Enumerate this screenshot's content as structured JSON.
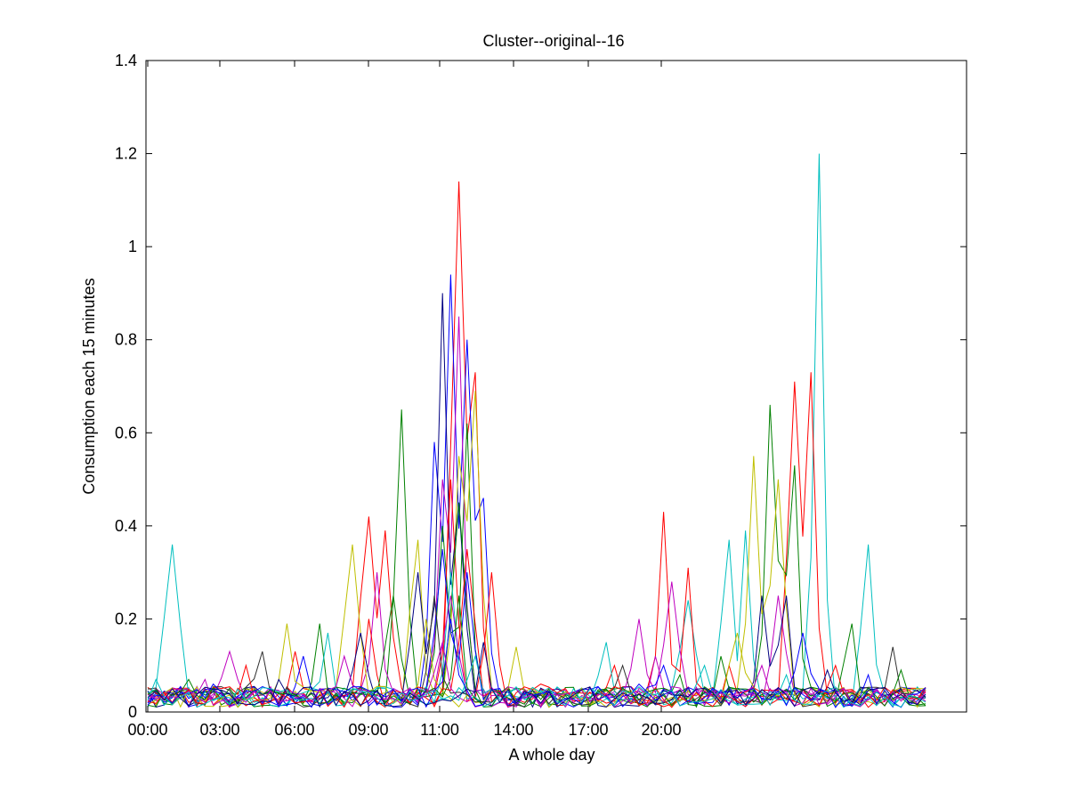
{
  "chart_data": {
    "type": "line",
    "title": "Cluster--original--16",
    "xlabel": "A whole day",
    "ylabel": "Consumption each 15 minutes",
    "x_ticks": [
      "00:00",
      "03:00",
      "06:00",
      "09:00",
      "11:00",
      "14:00",
      "17:00",
      "20:00"
    ],
    "y_ticks": [
      "0",
      "0.2",
      "0.4",
      "0.6",
      "0.8",
      "1",
      "1.2",
      "1.4"
    ],
    "ylim": [
      0,
      1.4
    ],
    "x_points_per_series": 96,
    "grid": false,
    "legend": "none",
    "colors": [
      "#0000ff",
      "#008000",
      "#ff0000",
      "#00bfbf",
      "#bf00bf",
      "#bfbf00",
      "#000080",
      "#303030"
    ],
    "series": [
      {
        "color": "#00bfbf",
        "peaks": [
          [
            3,
            0.36
          ],
          [
            66,
            0.24
          ],
          [
            71,
            0.37
          ],
          [
            73,
            0.39
          ],
          [
            82,
            1.2
          ],
          [
            88,
            0.36
          ]
        ]
      },
      {
        "color": "#ff0000",
        "peaks": [
          [
            27,
            0.42
          ],
          [
            29,
            0.39
          ],
          [
            38,
            1.14
          ],
          [
            40,
            0.73
          ],
          [
            63,
            0.43
          ],
          [
            66,
            0.31
          ],
          [
            79,
            0.71
          ],
          [
            81,
            0.73
          ]
        ]
      },
      {
        "color": "#0000ff",
        "peaks": [
          [
            35,
            0.58
          ],
          [
            37,
            0.94
          ],
          [
            39,
            0.8
          ],
          [
            41,
            0.46
          ]
        ]
      },
      {
        "color": "#008000",
        "peaks": [
          [
            31,
            0.65
          ],
          [
            36,
            0.4
          ],
          [
            39,
            0.62
          ],
          [
            76,
            0.66
          ],
          [
            79,
            0.53
          ]
        ]
      },
      {
        "color": "#bf00bf",
        "peaks": [
          [
            28,
            0.3
          ],
          [
            36,
            0.5
          ],
          [
            38,
            0.85
          ],
          [
            60,
            0.2
          ],
          [
            64,
            0.28
          ],
          [
            77,
            0.25
          ]
        ]
      },
      {
        "color": "#bfbf00",
        "peaks": [
          [
            25,
            0.36
          ],
          [
            33,
            0.37
          ],
          [
            38,
            0.55
          ],
          [
            40,
            0.69
          ],
          [
            74,
            0.55
          ],
          [
            77,
            0.5
          ]
        ]
      },
      {
        "color": "#000080",
        "peaks": [
          [
            26,
            0.17
          ],
          [
            33,
            0.3
          ],
          [
            36,
            0.9
          ],
          [
            38,
            0.45
          ],
          [
            75,
            0.25
          ],
          [
            78,
            0.25
          ]
        ]
      },
      {
        "color": "#ff0000",
        "peaks": [
          [
            18,
            0.13
          ],
          [
            27,
            0.2
          ],
          [
            37,
            0.5
          ],
          [
            42,
            0.3
          ],
          [
            57,
            0.1
          ],
          [
            71,
            0.1
          ]
        ]
      },
      {
        "color": "#008000",
        "peaks": [
          [
            21,
            0.19
          ],
          [
            30,
            0.25
          ],
          [
            38,
            0.45
          ],
          [
            70,
            0.12
          ],
          [
            86,
            0.19
          ]
        ]
      },
      {
        "color": "#0000ff",
        "peaks": [
          [
            19,
            0.12
          ],
          [
            36,
            0.35
          ],
          [
            39,
            0.3
          ],
          [
            63,
            0.1
          ],
          [
            80,
            0.17
          ]
        ]
      },
      {
        "color": "#00bfbf",
        "peaks": [
          [
            22,
            0.17
          ],
          [
            37,
            0.3
          ],
          [
            56,
            0.15
          ],
          [
            68,
            0.1
          ]
        ]
      },
      {
        "color": "#bf00bf",
        "peaks": [
          [
            10,
            0.13
          ],
          [
            24,
            0.12
          ],
          [
            37,
            0.25
          ],
          [
            62,
            0.12
          ]
        ]
      },
      {
        "color": "#bfbf00",
        "peaks": [
          [
            17,
            0.19
          ],
          [
            34,
            0.2
          ],
          [
            45,
            0.14
          ],
          [
            72,
            0.17
          ]
        ]
      },
      {
        "color": "#303030",
        "peaks": [
          [
            14,
            0.13
          ],
          [
            35,
            0.25
          ],
          [
            58,
            0.1
          ],
          [
            91,
            0.14
          ]
        ]
      },
      {
        "color": "#ff0000",
        "peaks": [
          [
            12,
            0.1
          ],
          [
            39,
            0.35
          ],
          [
            48,
            0.06
          ],
          [
            84,
            0.1
          ]
        ]
      },
      {
        "color": "#008000",
        "peaks": [
          [
            5,
            0.07
          ],
          [
            38,
            0.25
          ],
          [
            65,
            0.08
          ],
          [
            92,
            0.09
          ]
        ]
      },
      {
        "color": "#0000ff",
        "peaks": [
          [
            8,
            0.06
          ],
          [
            37,
            0.2
          ],
          [
            60,
            0.06
          ],
          [
            88,
            0.08
          ]
        ]
      },
      {
        "color": "#bf00bf",
        "peaks": [
          [
            7,
            0.07
          ],
          [
            36,
            0.15
          ],
          [
            75,
            0.1
          ]
        ]
      },
      {
        "color": "#00bfbf",
        "peaks": [
          [
            1,
            0.07
          ],
          [
            40,
            0.12
          ],
          [
            78,
            0.08
          ]
        ]
      },
      {
        "color": "#000080",
        "peaks": [
          [
            16,
            0.07
          ],
          [
            41,
            0.15
          ],
          [
            83,
            0.09
          ]
        ]
      }
    ]
  }
}
